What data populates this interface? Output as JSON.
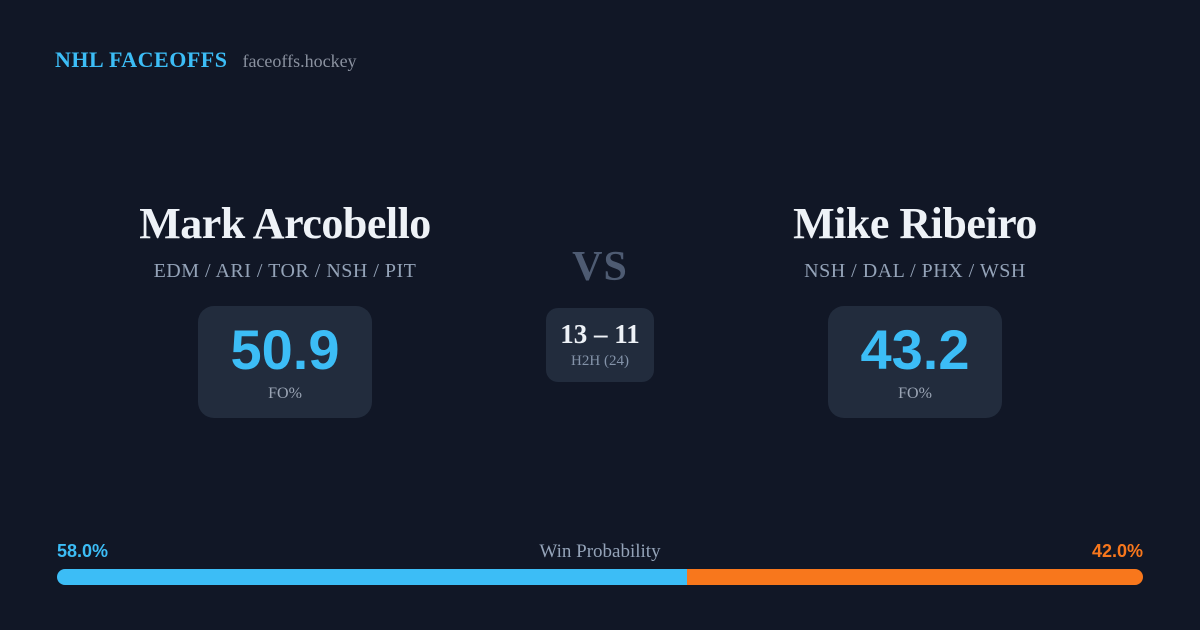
{
  "header": {
    "brand": "NHL FACEOFFS",
    "domain": "faceoffs.hockey"
  },
  "players": {
    "left": {
      "name": "Mark Arcobello",
      "teams": "EDM / ARI / TOR / NSH / PIT",
      "fo_value": "50.9",
      "fo_label": "FO%"
    },
    "right": {
      "name": "Mike Ribeiro",
      "teams": "NSH / DAL / PHX / WSH",
      "fo_value": "43.2",
      "fo_label": "FO%"
    }
  },
  "center": {
    "vs_label": "VS",
    "h2h_score": "13 – 11",
    "h2h_label": "H2H (24)"
  },
  "win_probability": {
    "title": "Win Probability",
    "left_pct_label": "58.0%",
    "right_pct_label": "42.0%",
    "left_value": 58.0,
    "right_value": 42.0
  },
  "colors": {
    "background": "#111726",
    "card": "#222c3d",
    "accent_blue": "#3cbdf6",
    "accent_orange": "#f8771c",
    "text_primary": "#eef2f7",
    "text_muted": "#94a3b8"
  }
}
